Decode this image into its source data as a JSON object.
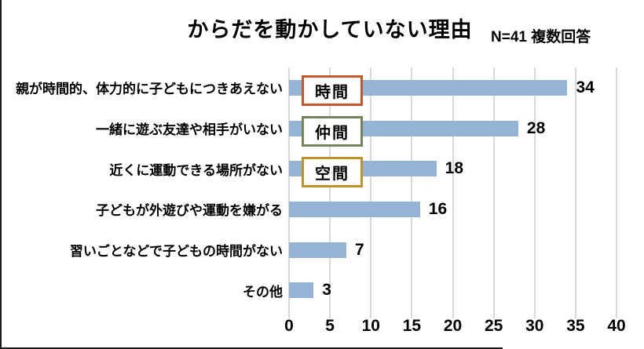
{
  "header": {
    "title": "からだを動かしていない理由",
    "n_label": "N=41 複数回答"
  },
  "chart_data": {
    "type": "bar",
    "orientation": "horizontal",
    "title": "からだを動かしていない理由",
    "subtitle": "N=41 複数回答",
    "categories": [
      "親が時間的、体力的に子どもにつきあえない",
      "一緒に遊ぶ友達や相手がいない",
      "近くに運動できる場所がない",
      "子どもが外遊びや運動を嫌がる",
      "習いごとなどで子どもの時間がない",
      "その他"
    ],
    "values": [
      34,
      28,
      18,
      16,
      7,
      3
    ],
    "xlabel": "",
    "ylabel": "",
    "xlim": [
      0,
      40
    ],
    "x_ticks": [
      0,
      5,
      10,
      15,
      20,
      25,
      30,
      35,
      40
    ],
    "grid": true,
    "bar_color": "#94b3d5",
    "gridline_color": "#d9d9d9",
    "annotations": [
      {
        "label": "時間",
        "row": 0,
        "border_color": "#c0582c"
      },
      {
        "label": "仲間",
        "row": 1,
        "border_color": "#75835a"
      },
      {
        "label": "空間",
        "row": 2,
        "border_color": "#c2922a"
      }
    ]
  }
}
